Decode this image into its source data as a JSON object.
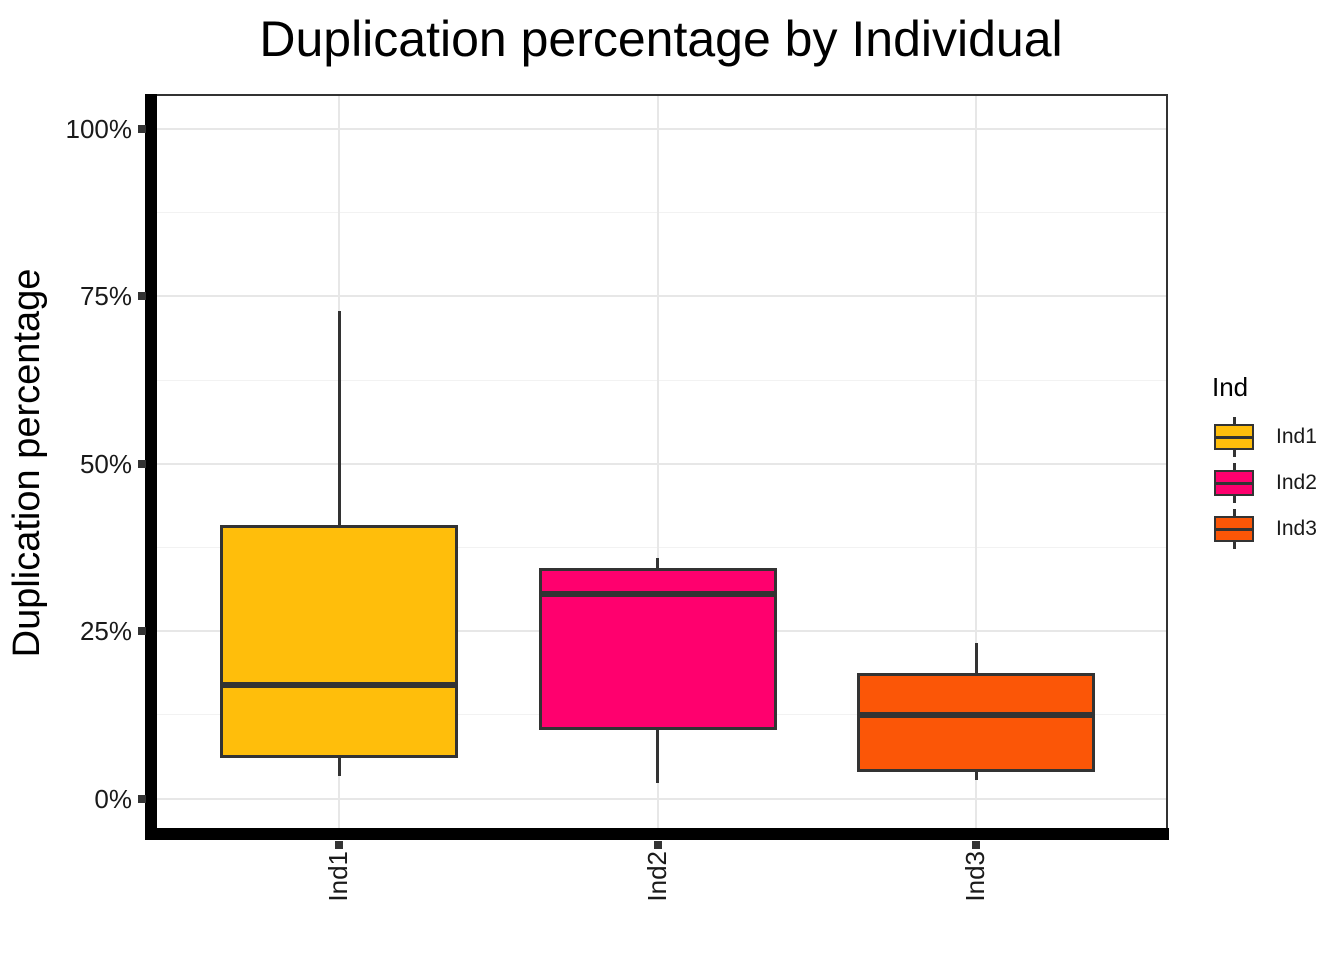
{
  "title": "Duplication percentage by Individual",
  "y_axis": {
    "label": "Duplication percentage",
    "tick_labels": [
      "0%",
      "25%",
      "50%",
      "75%",
      "100%"
    ]
  },
  "x_axis": {
    "tick_labels": [
      "Ind1",
      "Ind2",
      "Ind3"
    ]
  },
  "legend": {
    "title": "Ind",
    "entries": [
      {
        "label": "Ind1",
        "color": "#FFBE0B"
      },
      {
        "label": "Ind2",
        "color": "#FF006E"
      },
      {
        "label": "Ind3",
        "color": "#FB5607"
      }
    ]
  },
  "colors": {
    "box_outline": "#333333",
    "axis_bar": "#000000",
    "grid_major": "#e7e7e7",
    "grid_minor": "#f2f2f2",
    "panel_border": "#333333"
  },
  "chart_data": {
    "type": "boxplot",
    "title": "Duplication percentage by Individual",
    "xlabel": "",
    "ylabel": "Duplication percentage",
    "ylim": [
      0,
      100
    ],
    "yticks": [
      {
        "label": "0%",
        "value": 0
      },
      {
        "label": "25%",
        "value": 25
      },
      {
        "label": "50%",
        "value": 50
      },
      {
        "label": "75%",
        "value": 75
      },
      {
        "label": "100%",
        "value": 100
      }
    ],
    "yticks_minor": [
      12.5,
      37.5,
      62.5,
      87.5
    ],
    "categories": [
      "Ind1",
      "Ind2",
      "Ind3"
    ],
    "legend_title": "Ind",
    "legend_position": "right",
    "grid": true,
    "series": [
      {
        "name": "Ind1",
        "color": "#FFBE0B",
        "min": 3.3,
        "q1": 6.1,
        "median": 17.0,
        "q3": 40.8,
        "max": 72.8
      },
      {
        "name": "Ind2",
        "color": "#FF006E",
        "min": 2.3,
        "q1": 10.3,
        "median": 30.5,
        "q3": 34.5,
        "max": 36.0
      },
      {
        "name": "Ind3",
        "color": "#FB5607",
        "min": 2.8,
        "q1": 3.9,
        "median": 12.5,
        "q3": 18.7,
        "max": 23.3
      }
    ]
  }
}
